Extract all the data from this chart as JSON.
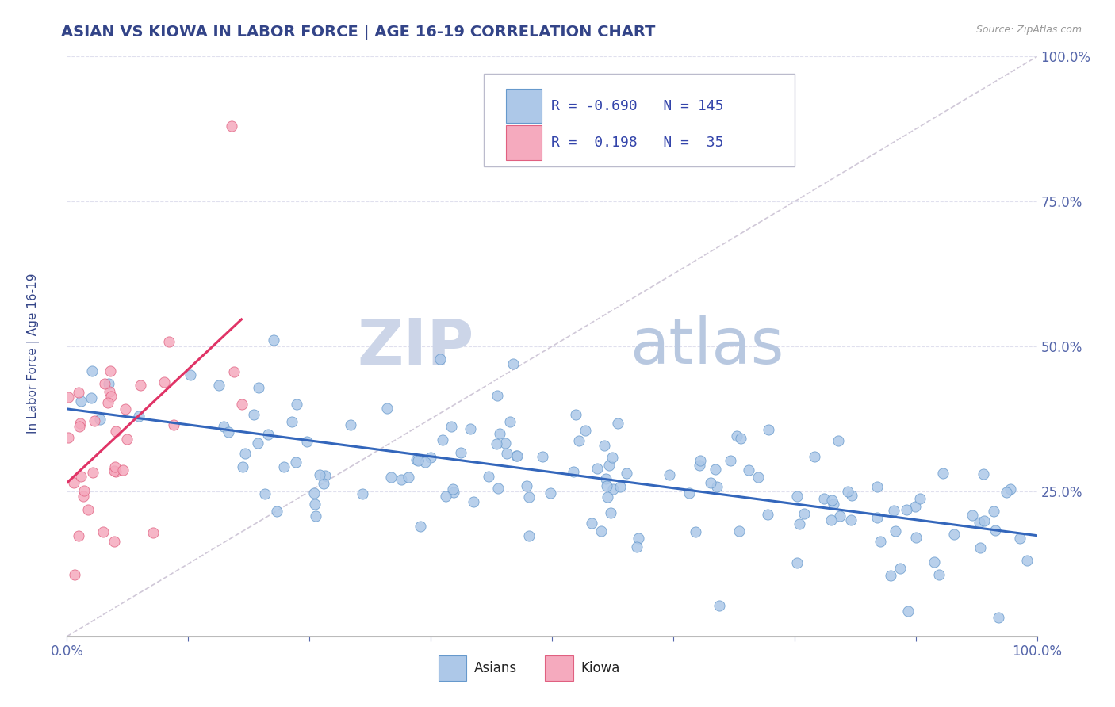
{
  "title": "ASIAN VS KIOWA IN LABOR FORCE | AGE 16-19 CORRELATION CHART",
  "source_text": "Source: ZipAtlas.com",
  "ylabel": "In Labor Force | Age 16-19",
  "xlim": [
    0.0,
    1.0
  ],
  "ylim": [
    0.0,
    1.0
  ],
  "xticks": [
    0.0,
    0.125,
    0.25,
    0.375,
    0.5,
    0.625,
    0.75,
    0.875,
    1.0
  ],
  "yticks": [
    0.0,
    0.25,
    0.5,
    0.75,
    1.0
  ],
  "xtick_labels": [
    "0.0%",
    "",
    "",
    "",
    "",
    "",
    "",
    "",
    "100.0%"
  ],
  "ytick_labels": [
    "",
    "25.0%",
    "50.0%",
    "75.0%",
    "100.0%"
  ],
  "blue_color": "#adc8e8",
  "pink_color": "#f5aabe",
  "blue_edge": "#6699cc",
  "pink_edge": "#e06080",
  "blue_line_color": "#3366bb",
  "pink_line_color": "#e03366",
  "ref_line_color": "#d0c8d8",
  "legend_R_blue": "-0.690",
  "legend_N_blue": "145",
  "legend_R_pink": "0.198",
  "legend_N_pink": "35",
  "watermark_zip": "ZIP",
  "watermark_atlas": "atlas",
  "title_color": "#334488",
  "source_color": "#999999",
  "tick_color": "#5566aa",
  "legend_text_color": "#3344aa",
  "blue_N": 145,
  "pink_N": 35,
  "seed": 7,
  "blue_intercept": 0.4,
  "blue_slope": -0.22,
  "blue_noise": 0.07,
  "pink_intercept": 0.28,
  "pink_slope": 0.6,
  "pink_noise": 0.1,
  "grid_color": "#e0e0ee",
  "grid_linestyle": "--"
}
